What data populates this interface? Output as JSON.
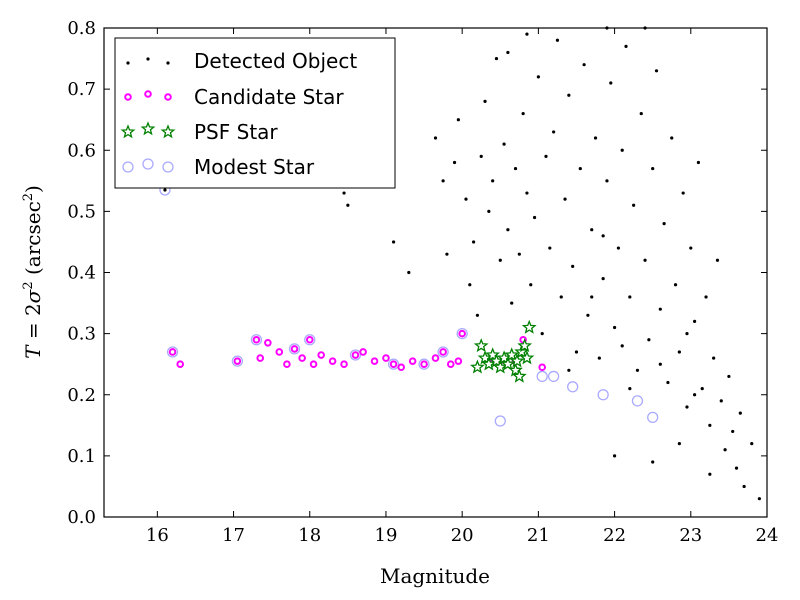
{
  "chart_data": {
    "type": "scatter",
    "xlabel": "Magnitude",
    "ylabel_parts": {
      "lhs": "T",
      "eq": " = 2",
      "sigma": "σ",
      "sup": "2",
      "unit_open": " (arcsec",
      "unit_close": ")"
    },
    "xlim": [
      15.3,
      24.0
    ],
    "ylim": [
      0.0,
      0.8
    ],
    "xticks": [
      16,
      17,
      18,
      19,
      20,
      21,
      22,
      23,
      24
    ],
    "yticks": [
      0.0,
      0.1,
      0.2,
      0.3,
      0.4,
      0.5,
      0.6,
      0.7,
      0.8
    ],
    "xtick_labels": [
      "16",
      "17",
      "18",
      "19",
      "20",
      "21",
      "22",
      "23",
      "24"
    ],
    "ytick_labels": [
      "0.0",
      "0.1",
      "0.2",
      "0.3",
      "0.4",
      "0.5",
      "0.6",
      "0.7",
      "0.8"
    ],
    "legend_position": "top-left",
    "series": [
      {
        "name": "Detected Object",
        "marker": "dot",
        "color": "#000000",
        "points": [
          [
            16.1,
            0.535
          ],
          [
            18.45,
            0.53
          ],
          [
            18.5,
            0.51
          ],
          [
            19.1,
            0.45
          ],
          [
            19.3,
            0.4
          ],
          [
            19.65,
            0.62
          ],
          [
            19.75,
            0.55
          ],
          [
            19.8,
            0.43
          ],
          [
            19.9,
            0.58
          ],
          [
            19.95,
            0.65
          ],
          [
            20.05,
            0.52
          ],
          [
            20.1,
            0.38
          ],
          [
            20.15,
            0.45
          ],
          [
            20.2,
            0.33
          ],
          [
            20.25,
            0.59
          ],
          [
            20.3,
            0.68
          ],
          [
            20.35,
            0.5
          ],
          [
            20.4,
            0.55
          ],
          [
            20.45,
            0.75
          ],
          [
            20.5,
            0.42
          ],
          [
            20.55,
            0.61
          ],
          [
            20.6,
            0.47
          ],
          [
            20.65,
            0.35
          ],
          [
            20.7,
            0.57
          ],
          [
            20.75,
            0.43
          ],
          [
            20.8,
            0.66
          ],
          [
            20.85,
            0.53
          ],
          [
            20.9,
            0.38
          ],
          [
            20.95,
            0.49
          ],
          [
            21.0,
            0.72
          ],
          [
            21.05,
            0.3
          ],
          [
            21.1,
            0.59
          ],
          [
            21.15,
            0.44
          ],
          [
            21.2,
            0.63
          ],
          [
            21.25,
            0.78
          ],
          [
            21.3,
            0.36
          ],
          [
            21.35,
            0.52
          ],
          [
            21.4,
            0.69
          ],
          [
            21.45,
            0.41
          ],
          [
            21.5,
            0.27
          ],
          [
            21.55,
            0.57
          ],
          [
            21.6,
            0.74
          ],
          [
            21.65,
            0.33
          ],
          [
            21.7,
            0.47
          ],
          [
            21.75,
            0.62
          ],
          [
            21.8,
            0.26
          ],
          [
            21.85,
            0.39
          ],
          [
            21.9,
            0.55
          ],
          [
            21.95,
            0.71
          ],
          [
            22.0,
            0.31
          ],
          [
            22.05,
            0.44
          ],
          [
            22.1,
            0.6
          ],
          [
            22.15,
            0.77
          ],
          [
            22.2,
            0.36
          ],
          [
            22.25,
            0.51
          ],
          [
            22.3,
            0.24
          ],
          [
            22.35,
            0.66
          ],
          [
            22.4,
            0.42
          ],
          [
            22.45,
            0.29
          ],
          [
            22.5,
            0.57
          ],
          [
            22.55,
            0.73
          ],
          [
            22.6,
            0.34
          ],
          [
            22.65,
            0.48
          ],
          [
            22.7,
            0.22
          ],
          [
            22.75,
            0.62
          ],
          [
            22.8,
            0.38
          ],
          [
            22.85,
            0.27
          ],
          [
            22.9,
            0.53
          ],
          [
            22.95,
            0.18
          ],
          [
            23.0,
            0.44
          ],
          [
            23.05,
            0.32
          ],
          [
            23.1,
            0.58
          ],
          [
            23.15,
            0.21
          ],
          [
            23.2,
            0.36
          ],
          [
            23.25,
            0.15
          ],
          [
            23.3,
            0.26
          ],
          [
            23.35,
            0.42
          ],
          [
            23.4,
            0.19
          ],
          [
            23.45,
            0.11
          ],
          [
            23.5,
            0.23
          ],
          [
            23.55,
            0.14
          ],
          [
            23.6,
            0.08
          ],
          [
            23.65,
            0.17
          ],
          [
            23.7,
            0.05
          ],
          [
            23.8,
            0.12
          ],
          [
            23.9,
            0.03
          ],
          [
            22.0,
            0.1
          ],
          [
            22.5,
            0.09
          ],
          [
            21.9,
            0.8
          ],
          [
            22.4,
            0.8
          ],
          [
            20.85,
            0.79
          ],
          [
            20.6,
            0.76
          ],
          [
            21.85,
            0.46
          ],
          [
            22.1,
            0.28
          ],
          [
            22.6,
            0.25
          ],
          [
            22.95,
            0.3
          ],
          [
            23.05,
            0.2
          ],
          [
            22.2,
            0.21
          ],
          [
            21.7,
            0.36
          ],
          [
            21.4,
            0.24
          ],
          [
            22.85,
            0.12
          ],
          [
            23.25,
            0.07
          ]
        ]
      },
      {
        "name": "Candidate Star",
        "marker": "circle-small",
        "color": "#ff00ff",
        "points": [
          [
            16.2,
            0.27
          ],
          [
            16.3,
            0.25
          ],
          [
            17.05,
            0.255
          ],
          [
            17.3,
            0.29
          ],
          [
            17.35,
            0.26
          ],
          [
            17.45,
            0.285
          ],
          [
            17.6,
            0.27
          ],
          [
            17.7,
            0.25
          ],
          [
            17.8,
            0.275
          ],
          [
            17.9,
            0.26
          ],
          [
            18.0,
            0.29
          ],
          [
            18.05,
            0.25
          ],
          [
            18.15,
            0.265
          ],
          [
            18.3,
            0.255
          ],
          [
            18.45,
            0.25
          ],
          [
            18.6,
            0.265
          ],
          [
            18.7,
            0.27
          ],
          [
            18.85,
            0.255
          ],
          [
            19.0,
            0.26
          ],
          [
            19.1,
            0.25
          ],
          [
            19.2,
            0.245
          ],
          [
            19.35,
            0.255
          ],
          [
            19.5,
            0.25
          ],
          [
            19.65,
            0.26
          ],
          [
            19.75,
            0.27
          ],
          [
            19.85,
            0.25
          ],
          [
            19.95,
            0.255
          ],
          [
            20.0,
            0.3
          ],
          [
            20.4,
            0.26
          ],
          [
            20.55,
            0.25
          ],
          [
            20.7,
            0.255
          ],
          [
            21.05,
            0.245
          ],
          [
            20.8,
            0.29
          ]
        ]
      },
      {
        "name": "PSF Star",
        "marker": "star",
        "color": "#008000",
        "points": [
          [
            20.2,
            0.245
          ],
          [
            20.25,
            0.28
          ],
          [
            20.3,
            0.26
          ],
          [
            20.35,
            0.25
          ],
          [
            20.4,
            0.265
          ],
          [
            20.45,
            0.255
          ],
          [
            20.5,
            0.245
          ],
          [
            20.55,
            0.26
          ],
          [
            20.6,
            0.25
          ],
          [
            20.65,
            0.265
          ],
          [
            20.7,
            0.24
          ],
          [
            20.72,
            0.255
          ],
          [
            20.75,
            0.23
          ],
          [
            20.78,
            0.27
          ],
          [
            20.82,
            0.28
          ],
          [
            20.85,
            0.26
          ],
          [
            20.88,
            0.31
          ]
        ]
      },
      {
        "name": "Modest Star",
        "marker": "circle-large",
        "color": "#aaaaff",
        "points": [
          [
            16.1,
            0.535
          ],
          [
            16.2,
            0.27
          ],
          [
            17.05,
            0.255
          ],
          [
            17.3,
            0.29
          ],
          [
            17.8,
            0.275
          ],
          [
            18.0,
            0.29
          ],
          [
            18.6,
            0.265
          ],
          [
            19.1,
            0.25
          ],
          [
            19.5,
            0.25
          ],
          [
            19.75,
            0.27
          ],
          [
            20.0,
            0.3
          ],
          [
            20.5,
            0.157
          ],
          [
            21.05,
            0.23
          ],
          [
            21.2,
            0.23
          ],
          [
            21.45,
            0.213
          ],
          [
            21.85,
            0.2
          ],
          [
            22.3,
            0.19
          ],
          [
            22.5,
            0.163
          ]
        ]
      }
    ]
  }
}
